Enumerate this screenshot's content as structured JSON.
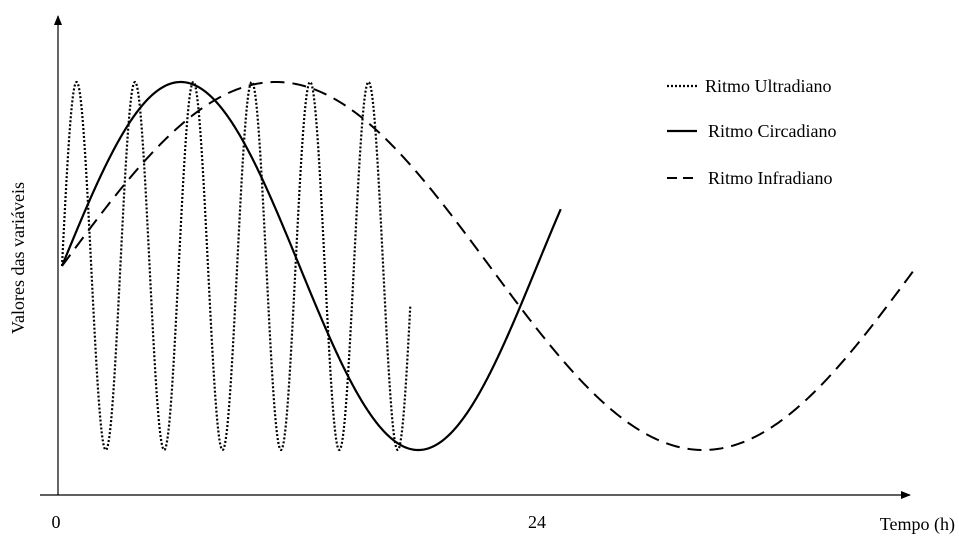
{
  "chart_data": {
    "type": "line",
    "title": "",
    "xlabel": "Tempo (h)",
    "ylabel": "Valores das variáveis",
    "x_ticks": [
      {
        "value": 0,
        "label": "0"
      },
      {
        "value": 24,
        "label": "24"
      }
    ],
    "xlim": [
      0,
      45
    ],
    "grid": false,
    "legend_position": "top-right",
    "series": [
      {
        "name": "Ritmo Ultradiano",
        "style": "dotted",
        "color": "#000000",
        "x_start": 0,
        "x_end": 17.6,
        "period": 2.95,
        "mean": 0,
        "amplitude": 1
      },
      {
        "name": "Ritmo Circadiano",
        "style": "solid",
        "color": "#000000",
        "x_start": 0,
        "x_end": 25.2,
        "period": 24,
        "mean": 0,
        "amplitude": 1
      },
      {
        "name": "Ritmo Infradiano",
        "style": "dashed",
        "color": "#000000",
        "x_start": 0,
        "x_end": 43.2,
        "period": 43.2,
        "mean": 0,
        "amplitude": 1
      }
    ]
  }
}
